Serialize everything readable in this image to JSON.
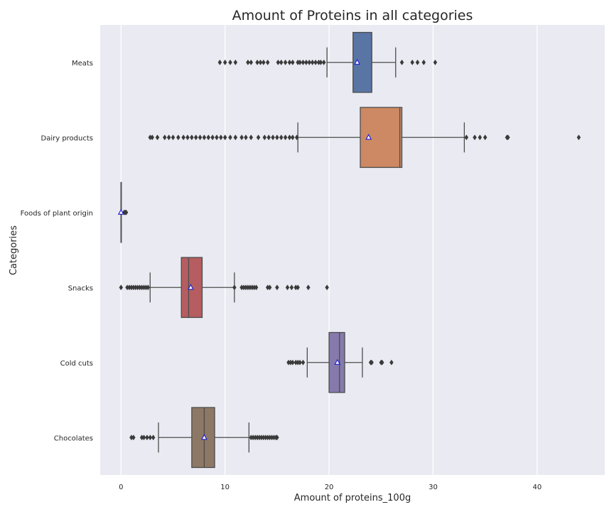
{
  "chart_data": {
    "type": "boxplot",
    "orientation": "horizontal",
    "title": "Amount of Proteins in all categories",
    "xlabel": "Amount of proteins_100g",
    "ylabel": "Categories",
    "xlim": [
      -2,
      46.5
    ],
    "xticks": [
      0,
      10,
      20,
      30,
      40
    ],
    "grid": true,
    "background": "#eaeaf2",
    "categories": [
      "Meats",
      "Dairy products",
      "Foods of plant origin",
      "Snacks",
      "Cold cuts",
      "Chocolates"
    ],
    "series": [
      {
        "category": "Meats",
        "color": "#5975a4",
        "q1": 22.3,
        "median": 24.1,
        "q3": 24.1,
        "whisker_low": 19.8,
        "whisker_high": 26.4,
        "mean": 22.7,
        "outliers": [
          9.5,
          10.0,
          10.5,
          11.0,
          12.2,
          12.5,
          13.1,
          13.4,
          13.7,
          14.1,
          15.1,
          15.4,
          15.8,
          16.2,
          16.5,
          17.0,
          17.2,
          17.5,
          17.8,
          18.1,
          18.4,
          18.7,
          19.0,
          19.2,
          19.5,
          27.0,
          28.0,
          28.5,
          29.1,
          30.2
        ]
      },
      {
        "category": "Dairy products",
        "color": "#cc8963",
        "q1": 23.0,
        "median": 26.8,
        "q3": 27.0,
        "whisker_low": 17.0,
        "whisker_high": 33.0,
        "mean": 23.8,
        "outliers": [
          2.8,
          3.0,
          3.5,
          4.2,
          4.6,
          5.0,
          5.5,
          6.0,
          6.4,
          6.8,
          7.2,
          7.6,
          8.0,
          8.4,
          8.8,
          9.2,
          9.6,
          10.0,
          10.5,
          11.0,
          11.6,
          12.0,
          12.5,
          13.2,
          13.8,
          14.2,
          14.6,
          15.0,
          15.4,
          15.8,
          16.2,
          16.5,
          16.9,
          33.2,
          34.0,
          34.5,
          35.0,
          37.1,
          37.2,
          44.0
        ]
      },
      {
        "category": "Foods of plant origin",
        "color": "#5975a4",
        "q1": 0.0,
        "median": 0.0,
        "q3": 0.0,
        "whisker_low": 0.0,
        "whisker_high": 0.0,
        "mean": 0.0,
        "outliers": [
          0.3,
          0.4,
          0.5
        ]
      },
      {
        "category": "Snacks",
        "color": "#b55d60",
        "q1": 5.8,
        "median": 6.5,
        "q3": 7.8,
        "whisker_low": 2.8,
        "whisker_high": 10.9,
        "mean": 6.7,
        "outliers": [
          0.0,
          0.6,
          0.8,
          1.0,
          1.2,
          1.4,
          1.6,
          1.8,
          2.0,
          2.2,
          2.4,
          2.6,
          10.9,
          11.6,
          11.8,
          12.0,
          12.2,
          12.4,
          12.6,
          12.8,
          13.0,
          14.1,
          14.3,
          15.0,
          16.0,
          16.4,
          16.8,
          17.0,
          18.0,
          19.8
        ]
      },
      {
        "category": "Cold cuts",
        "color": "#857aab",
        "q1": 20.0,
        "median": 21.0,
        "q3": 21.5,
        "whisker_low": 17.9,
        "whisker_high": 23.2,
        "mean": 20.8,
        "outliers": [
          16.1,
          16.3,
          16.5,
          16.8,
          17.0,
          17.2,
          17.5,
          24.0,
          24.1,
          25.0,
          25.1,
          26.0
        ]
      },
      {
        "category": "Chocolates",
        "color": "#8d7866",
        "q1": 6.8,
        "median": 8.0,
        "q3": 9.0,
        "whisker_low": 3.6,
        "whisker_high": 12.3,
        "mean": 8.0,
        "outliers": [
          1.0,
          1.2,
          2.0,
          2.2,
          2.5,
          2.8,
          3.1,
          12.5,
          12.7,
          12.9,
          13.1,
          13.3,
          13.5,
          13.7,
          13.9,
          14.1,
          14.3,
          14.5,
          14.7,
          14.9,
          15.0
        ]
      }
    ]
  }
}
